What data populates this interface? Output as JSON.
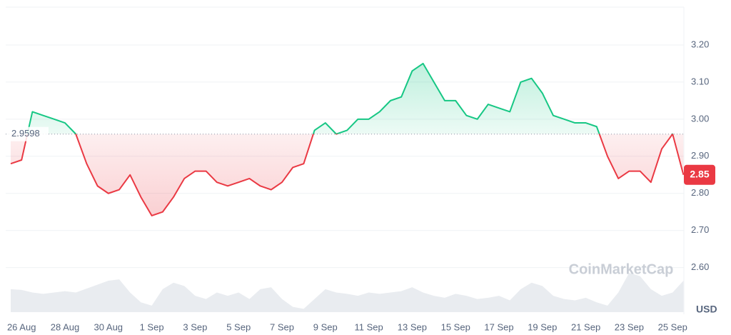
{
  "chart_data": {
    "type": "line",
    "categories": [
      null,
      "26 Aug",
      null,
      null,
      null,
      "28 Aug",
      null,
      null,
      null,
      "30 Aug",
      null,
      null,
      null,
      "1 Sep",
      null,
      null,
      null,
      "3 Sep",
      null,
      null,
      null,
      "5 Sep",
      null,
      null,
      null,
      "7 Sep",
      null,
      null,
      null,
      "9 Sep",
      null,
      null,
      null,
      "11 Sep",
      null,
      null,
      null,
      "13 Sep",
      null,
      null,
      null,
      "15 Sep",
      null,
      null,
      null,
      "17 Sep",
      null,
      null,
      null,
      "19 Sep",
      null,
      null,
      null,
      "21 Sep",
      null,
      null,
      null,
      "23 Sep",
      null,
      null,
      null,
      "25 Sep",
      null
    ],
    "values": [
      2.88,
      2.89,
      3.02,
      3.01,
      3.0,
      2.99,
      2.96,
      2.88,
      2.82,
      2.8,
      2.81,
      2.85,
      2.79,
      2.74,
      2.75,
      2.79,
      2.84,
      2.86,
      2.86,
      2.83,
      2.82,
      2.83,
      2.84,
      2.82,
      2.81,
      2.83,
      2.87,
      2.88,
      2.97,
      2.99,
      2.96,
      2.97,
      3.0,
      3.0,
      3.02,
      3.05,
      3.06,
      3.13,
      3.15,
      3.1,
      3.05,
      3.05,
      3.01,
      3.0,
      3.04,
      3.03,
      3.02,
      3.1,
      3.11,
      3.07,
      3.01,
      3.0,
      2.99,
      2.99,
      2.98,
      2.9,
      2.84,
      2.86,
      2.86,
      2.83,
      2.92,
      2.96,
      2.85
    ],
    "volume": [
      35,
      34,
      30,
      28,
      30,
      32,
      30,
      36,
      42,
      48,
      50,
      30,
      15,
      10,
      35,
      45,
      40,
      25,
      20,
      30,
      25,
      30,
      20,
      35,
      38,
      20,
      8,
      5,
      20,
      35,
      30,
      28,
      25,
      30,
      28,
      30,
      32,
      38,
      30,
      25,
      22,
      28,
      25,
      20,
      22,
      25,
      18,
      35,
      45,
      40,
      25,
      20,
      18,
      22,
      15,
      10,
      30,
      60,
      55,
      35,
      25,
      30,
      48
    ],
    "up_color": "#16c784",
    "down_color": "#ea3943",
    "volume_color": "#e9ecf0",
    "baseline": 2.9598,
    "last_price": 2.85,
    "unit": "USD",
    "watermark": "CoinMarketCap",
    "ylim": [
      2.48,
      3.3
    ],
    "yticks": [
      {
        "value": 2.6,
        "label": "2.60"
      },
      {
        "value": 2.7,
        "label": "2.70"
      },
      {
        "value": 2.8,
        "label": "2.80"
      },
      {
        "value": 2.9,
        "label": "2.90"
      },
      {
        "value": 3.0,
        "label": "3.00"
      },
      {
        "value": 3.1,
        "label": "3.10"
      },
      {
        "value": 3.2,
        "label": "3.20"
      }
    ],
    "grid": true
  }
}
